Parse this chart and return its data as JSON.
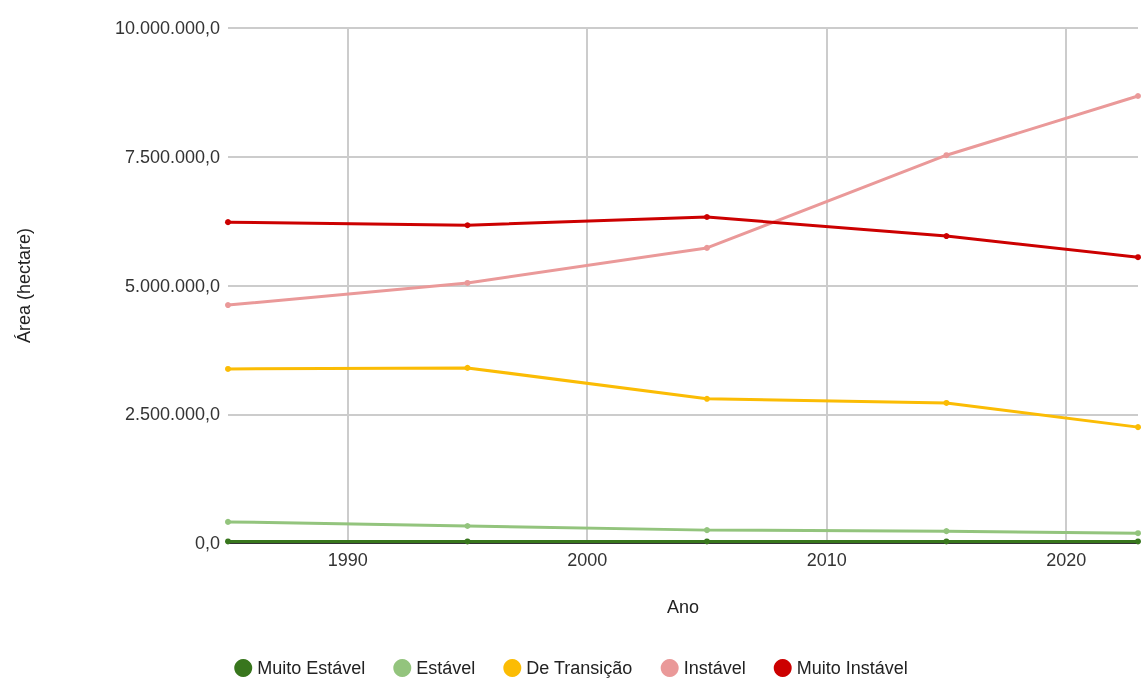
{
  "chart_data": {
    "type": "line",
    "xlabel": "Ano",
    "ylabel": "Área (hectare)",
    "x": [
      1985,
      1995,
      2005,
      2015,
      2023
    ],
    "series": [
      {
        "name": "Muito Estável",
        "color": "#38761d",
        "values": [
          30000,
          30000,
          30000,
          30000,
          30000
        ]
      },
      {
        "name": "Estável",
        "color": "#93c47d",
        "values": [
          410000,
          330000,
          250000,
          230000,
          190000
        ]
      },
      {
        "name": "De Transição",
        "color": "#fbbc04",
        "values": [
          3380000,
          3400000,
          2800000,
          2720000,
          2250000
        ]
      },
      {
        "name": "Instável",
        "color": "#ea9999",
        "values": [
          4620000,
          5050000,
          5730000,
          7530000,
          8680000
        ]
      },
      {
        "name": "Muito Instável",
        "color": "#cc0000",
        "values": [
          6230000,
          6170000,
          6330000,
          5960000,
          5550000
        ]
      }
    ],
    "xlim": [
      1985,
      2023
    ],
    "xticks": [
      1990,
      2000,
      2010,
      2020
    ],
    "ylim": [
      0,
      10000000
    ],
    "yticks": [
      {
        "value": 0,
        "label": "0,0"
      },
      {
        "value": 2500000,
        "label": "2.500.000,0"
      },
      {
        "value": 5000000,
        "label": "5.000.000,0"
      },
      {
        "value": 7500000,
        "label": "7.500.000,0"
      },
      {
        "value": 10000000,
        "label": "10.000.000,0"
      }
    ],
    "grid": true,
    "legend": "bottom",
    "marker": "circle",
    "line_style": "solid"
  }
}
